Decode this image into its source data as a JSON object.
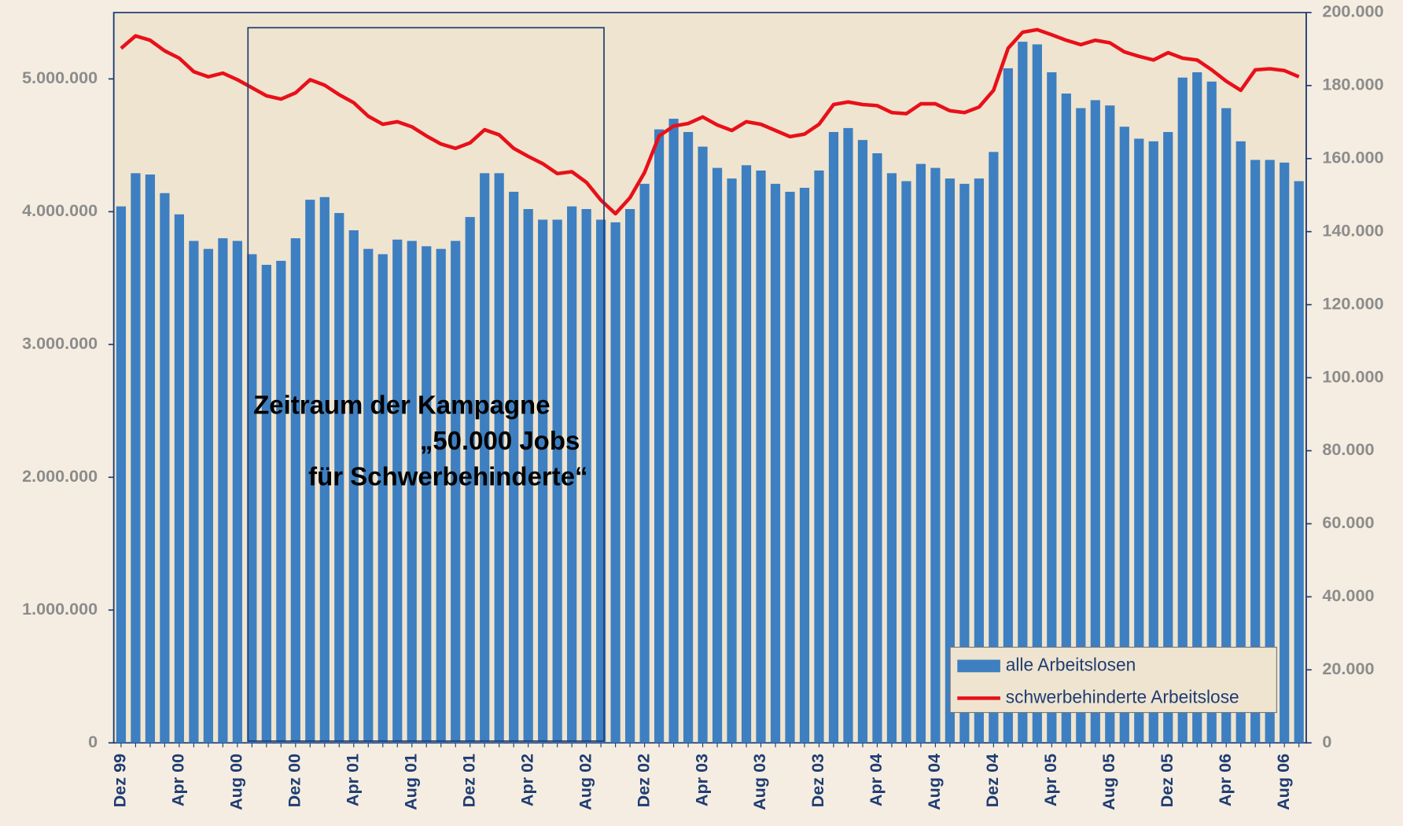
{
  "chart_data": {
    "type": "bar",
    "categories": [
      "Dez 99",
      null,
      null,
      null,
      "Apr 00",
      null,
      null,
      null,
      "Aug 00",
      null,
      null,
      null,
      "Dez 00",
      null,
      null,
      null,
      "Apr 01",
      null,
      null,
      null,
      "Aug 01",
      null,
      null,
      null,
      "Dez 01",
      null,
      null,
      null,
      "Apr 02",
      null,
      null,
      null,
      "Aug 02",
      null,
      null,
      null,
      "Dez 02",
      null,
      null,
      null,
      "Apr 03",
      null,
      null,
      null,
      "Aug 03",
      null,
      null,
      null,
      "Dez 03",
      null,
      null,
      null,
      "Apr 04",
      null,
      null,
      null,
      "Aug 04",
      null,
      null,
      null,
      "Dez 04",
      null,
      null,
      null,
      "Apr 05",
      null,
      null,
      null,
      "Aug 05",
      null,
      null,
      null,
      "Dez 05",
      null,
      null,
      null,
      "Apr 06",
      null,
      null,
      null,
      "Aug 06",
      null
    ],
    "series": [
      {
        "name": "alle Arbeitslosen",
        "type": "bar",
        "color": "#3d7fc1",
        "values": [
          4040000,
          4290000,
          4280000,
          4140000,
          3980000,
          3780000,
          3720000,
          3800000,
          3780000,
          3680000,
          3600000,
          3630000,
          3800000,
          4090000,
          4110000,
          3990000,
          3860000,
          3720000,
          3680000,
          3790000,
          3780000,
          3740000,
          3720000,
          3780000,
          3960000,
          4290000,
          4290000,
          4150000,
          4020000,
          3940000,
          3940000,
          4040000,
          4020000,
          3940000,
          3920000,
          4020000,
          4210000,
          4620000,
          4700000,
          4600000,
          4490000,
          4330000,
          4250000,
          4350000,
          4310000,
          4210000,
          4150000,
          4180000,
          4310000,
          4600000,
          4630000,
          4540000,
          4440000,
          4290000,
          4230000,
          4360000,
          4330000,
          4250000,
          4210000,
          4250000,
          4450000,
          5080000,
          5280000,
          5260000,
          5050000,
          4890000,
          4780000,
          4840000,
          4800000,
          4640000,
          4550000,
          4530000,
          4600000,
          5010000,
          5050000,
          4980000,
          4780000,
          4530000,
          4390000,
          4390000,
          4370000,
          4230000
        ]
      },
      {
        "name": "schwerbehinderte Arbeitslose",
        "type": "line",
        "axis": "y2",
        "color": "#e8101a",
        "values": [
          190200,
          193600,
          192400,
          189500,
          187500,
          183800,
          182400,
          183400,
          181600,
          179400,
          177200,
          176300,
          178000,
          181600,
          180100,
          177500,
          175300,
          171600,
          169400,
          170100,
          168700,
          166200,
          164000,
          162800,
          164300,
          167900,
          166500,
          162800,
          160600,
          158600,
          155900,
          156400,
          153500,
          148600,
          144900,
          149300,
          156200,
          166200,
          168900,
          169600,
          171400,
          169200,
          167700,
          170100,
          169400,
          167700,
          166000,
          166700,
          169400,
          174800,
          175500,
          174800,
          174500,
          172600,
          172300,
          175000,
          175000,
          173100,
          172600,
          174100,
          178700,
          190200,
          194600,
          195300,
          193900,
          192400,
          191200,
          192400,
          191700,
          189200,
          188000,
          187000,
          189000,
          187500,
          187000,
          184300,
          181200,
          178700,
          184300,
          184600,
          184100,
          182400
        ]
      }
    ],
    "ylim": [
      0,
      5500000
    ],
    "yticks": [
      0,
      {
        "value": 1000000,
        "label": "1.000.000"
      },
      {
        "value": 2000000,
        "label": "2.000.000"
      },
      {
        "value": 3000000,
        "label": "3.000.000"
      },
      {
        "value": 4000000,
        "label": "4.000.000"
      },
      {
        "value": 5000000,
        "label": "5.000.000"
      }
    ],
    "y2lim": [
      0,
      200000
    ],
    "y2ticks": [
      0,
      {
        "value": 20000,
        "label": "20.000"
      },
      {
        "value": 40000,
        "label": "40.000"
      },
      {
        "value": 60000,
        "label": "60.000"
      },
      {
        "value": 80000,
        "label": "80.000"
      },
      {
        "value": 100000,
        "label": "100.000"
      },
      {
        "value": 120000,
        "label": "120.000"
      },
      {
        "value": 140000,
        "label": "140.000"
      },
      {
        "value": 160000,
        "label": "160.000"
      },
      {
        "value": 180000,
        "label": "180.000"
      },
      {
        "value": 200000,
        "label": "200.000"
      }
    ],
    "annotation": [
      "Zeitraum der Kampagne",
      "„50.000 Jobs",
      "für Schwerbehinderte“"
    ],
    "legend": "lower right"
  }
}
